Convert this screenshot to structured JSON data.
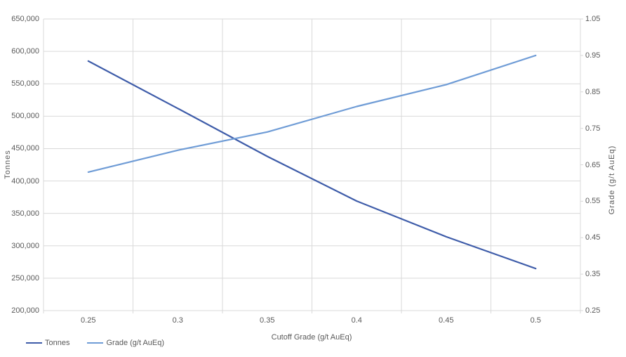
{
  "chart_data": {
    "type": "line",
    "title": "",
    "categories": [
      "0.25",
      "0.3",
      "0.35",
      "0.4",
      "0.45",
      "0.5"
    ],
    "series": [
      {
        "name": "Tonnes",
        "axis": "left",
        "color": "#3E5CA9",
        "values": [
          585000,
          512000,
          438000,
          369000,
          314000,
          265000
        ]
      },
      {
        "name": "Grade (g/t AuEq)",
        "axis": "right",
        "color": "#6F9CD6",
        "values": [
          0.63,
          0.69,
          0.74,
          0.81,
          0.87,
          0.95
        ]
      }
    ],
    "xlabel": "Cutoff Grade (g/t AuEq)",
    "left_axis": {
      "title": "Tonnes",
      "min": 200000,
      "max": 650000,
      "step": 50000,
      "tick_labels": [
        "650,000",
        "600,000",
        "550,000",
        "500,000",
        "450,000",
        "400,000",
        "350,000",
        "300,000",
        "250,000",
        "200,000"
      ]
    },
    "right_axis": {
      "title": "Grade (g/t AuEq)",
      "min": 0.25,
      "max": 1.05,
      "step": 0.1,
      "tick_labels": [
        "1.05",
        "0.95",
        "0.85",
        "0.75",
        "0.65",
        "0.55",
        "0.45",
        "0.35",
        "0.25"
      ]
    },
    "grid": true,
    "legend_position": "bottom-left",
    "colors": {
      "gridline": "#D9D9D9",
      "axis_text": "#595959",
      "background": "#FFFFFF"
    }
  }
}
